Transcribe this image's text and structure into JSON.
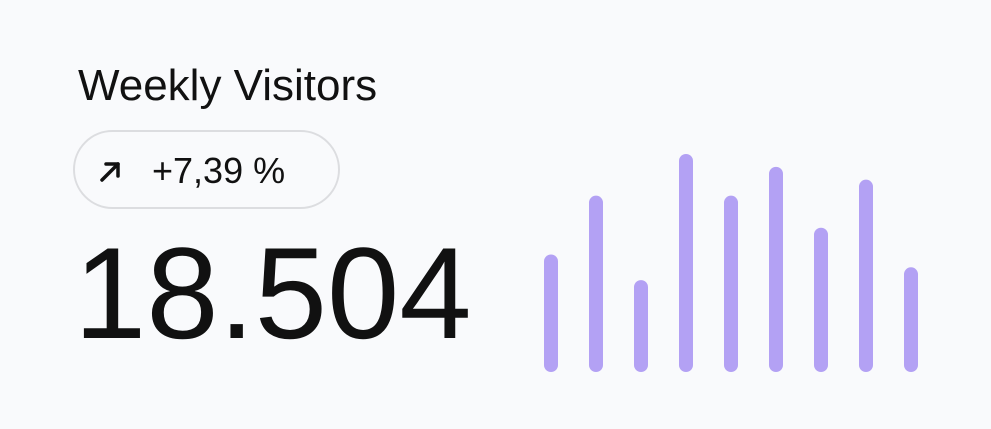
{
  "header": {
    "title": "Weekly Visitors"
  },
  "badge": {
    "text": "+7,39 %"
  },
  "metric": {
    "value": "18.504"
  },
  "chart_data": {
    "type": "bar",
    "values": [
      110,
      165,
      86,
      204,
      165,
      192,
      135,
      180,
      98
    ],
    "color": "#b3a1f4"
  }
}
